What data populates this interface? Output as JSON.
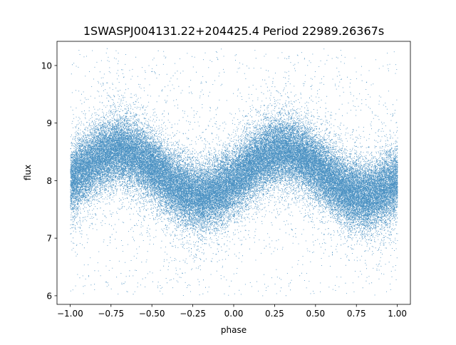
{
  "chart_data": {
    "type": "scatter",
    "title": "1SWASPJ004131.22+204425.4 Period 22989.26367s",
    "xlabel": "phase",
    "ylabel": "flux",
    "xlim": [
      -1.08,
      1.08
    ],
    "ylim": [
      5.85,
      10.42
    ],
    "x_ticks": [
      -1.0,
      -0.75,
      -0.5,
      -0.25,
      0.0,
      0.25,
      0.5,
      0.75,
      1.0
    ],
    "x_tick_labels": [
      "−1.00",
      "−0.75",
      "−0.50",
      "−0.25",
      "0.00",
      "0.25",
      "0.50",
      "0.75",
      "1.00"
    ],
    "y_ticks": [
      6,
      7,
      8,
      9,
      10
    ],
    "y_tick_labels": [
      "6",
      "7",
      "8",
      "9",
      "10"
    ],
    "grid": false,
    "legend": "none",
    "marker_color": "#1f77b4",
    "phase_range": [
      -1.0,
      1.0
    ],
    "mean_flux_profile": {
      "phase": [
        -1.0,
        -0.9,
        -0.8,
        -0.7,
        -0.6,
        -0.5,
        -0.4,
        -0.3,
        -0.2,
        -0.1,
        0.0,
        0.1,
        0.2,
        0.3,
        0.4,
        0.5,
        0.6,
        0.7,
        0.8,
        0.9,
        1.0
      ],
      "flux": [
        8.0,
        8.25,
        8.45,
        8.55,
        8.45,
        8.25,
        8.0,
        7.8,
        7.72,
        7.8,
        8.0,
        8.25,
        8.45,
        8.55,
        8.45,
        8.25,
        8.0,
        7.8,
        7.72,
        7.8,
        8.0
      ]
    },
    "band_spread": 0.28,
    "outlier_flux_range": [
      6.0,
      10.3
    ],
    "approx_point_count": 60000
  }
}
